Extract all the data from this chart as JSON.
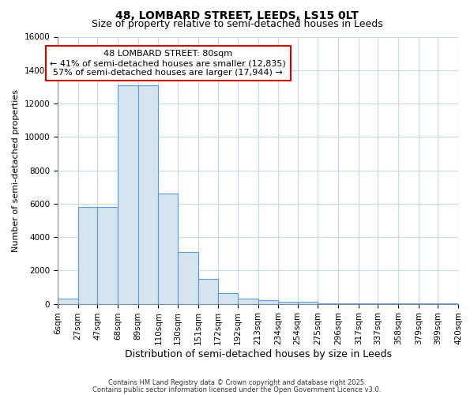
{
  "title": "48, LOMBARD STREET, LEEDS, LS15 0LT",
  "subtitle": "Size of property relative to semi-detached houses in Leeds",
  "xlabel": "Distribution of semi-detached houses by size in Leeds",
  "ylabel": "Number of semi-detached properties",
  "bar_color": "#d6e4f0",
  "bar_edge_color": "#5b9bd5",
  "background_color": "#ffffff",
  "grid_color": "#c8d8e8",
  "bin_edges": [
    6,
    27,
    47,
    68,
    89,
    110,
    130,
    151,
    172,
    192,
    213,
    234,
    254,
    275,
    296,
    317,
    337,
    358,
    379,
    399,
    420
  ],
  "bar_heights": [
    300,
    5800,
    5800,
    13100,
    13100,
    6600,
    3100,
    1500,
    650,
    300,
    230,
    100,
    100,
    50,
    30,
    20,
    10,
    10,
    5,
    5
  ],
  "property_size": 80,
  "vline_color": "#000000",
  "annotation_text": "48 LOMBARD STREET: 80sqm\n← 41% of semi-detached houses are smaller (12,835)\n57% of semi-detached houses are larger (17,944) →",
  "annotation_box_color": "#ffffff",
  "annotation_box_edge": "#cc0000",
  "ylim": [
    0,
    16000
  ],
  "yticks": [
    0,
    2000,
    4000,
    6000,
    8000,
    10000,
    12000,
    14000,
    16000
  ],
  "footer_line1": "Contains HM Land Registry data © Crown copyright and database right 2025.",
  "footer_line2": "Contains public sector information licensed under the Open Government Licence v3.0.",
  "title_fontsize": 10,
  "subtitle_fontsize": 9,
  "tick_label_fontsize": 7.5,
  "ylabel_fontsize": 8,
  "xlabel_fontsize": 9,
  "annotation_fontsize": 8
}
